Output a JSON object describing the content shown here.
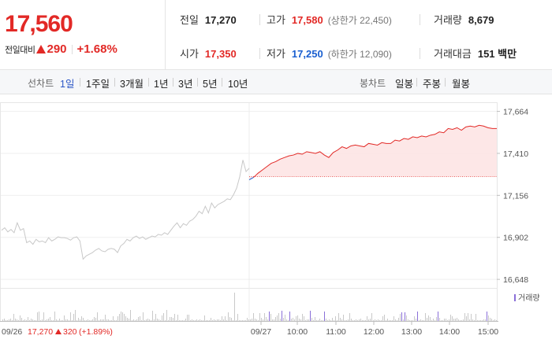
{
  "header": {
    "price": "17,560",
    "change_label": "전일대비",
    "change_value": "290",
    "change_pct": "+1.68%"
  },
  "stats": {
    "prev_close_label": "전일",
    "prev_close": "17,270",
    "open_label": "시가",
    "open": "17,350",
    "high_label": "고가",
    "high": "17,580",
    "upper_limit": "(상한가 22,450)",
    "low_label": "저가",
    "low": "17,250",
    "lower_limit": "(하한가 12,090)",
    "volume_label": "거래량",
    "volume": "8,679",
    "amount_label": "거래대금",
    "amount": "151 백만"
  },
  "toolbar": {
    "line_label": "선차트",
    "line_options": [
      "1일",
      "1주일",
      "3개월",
      "1년",
      "3년",
      "5년",
      "10년"
    ],
    "candle_label": "봉차트",
    "candle_options": [
      "일봉",
      "주봉",
      "월봉"
    ]
  },
  "legend": {
    "volume": "거래량"
  },
  "footer": {
    "prev_date": "09/26",
    "prev_price": "17,270",
    "prev_change": "320",
    "prev_pct": "(+1.89%)"
  },
  "colors": {
    "up": "#e22926",
    "down": "#1a5fd0",
    "prev_line": "#c8c8c8",
    "fill": "#fde3e3",
    "volume": "#c9c9c9",
    "volume_today": "#8a6fd8"
  },
  "chart_data": {
    "type": "line",
    "y_ticks": [
      "17,664",
      "17,410",
      "17,156",
      "16,902",
      "16,648"
    ],
    "y_tick_values": [
      17664,
      17410,
      17156,
      16902,
      16648
    ],
    "ylim": [
      16620,
      17700
    ],
    "baseline": 17270,
    "x_ticks": [
      "09/27",
      "10:00",
      "11:00",
      "12:00",
      "13:00",
      "14:00",
      "15:00"
    ],
    "previous_day_series": [
      16945,
      16960,
      16935,
      16950,
      16930,
      16990,
      16945,
      16955,
      16870,
      16880,
      16860,
      16890,
      16875,
      16880,
      16870,
      16900,
      16880,
      16890,
      16905,
      16900,
      16900,
      16895,
      16885,
      16900,
      16905,
      16880,
      16770,
      16790,
      16800,
      16810,
      16825,
      16835,
      16820,
      16815,
      16830,
      16835,
      16830,
      16810,
      16850,
      16865,
      16890,
      16880,
      16900,
      16910,
      16895,
      16905,
      16890,
      16900,
      16910,
      16905,
      16920,
      16915,
      16930,
      16920,
      16945,
      16970,
      16990,
      16960,
      16985,
      16975,
      17000,
      17010,
      17030,
      17060,
      17045,
      17090,
      17050,
      17110,
      17080,
      17100,
      17110,
      17120,
      17135,
      17130,
      17160,
      17200,
      17270,
      17370,
      17300,
      17320
    ],
    "today_series": [
      17250,
      17265,
      17290,
      17310,
      17330,
      17350,
      17360,
      17375,
      17385,
      17395,
      17400,
      17410,
      17405,
      17420,
      17415,
      17410,
      17420,
      17400,
      17385,
      17415,
      17430,
      17450,
      17440,
      17455,
      17460,
      17455,
      17450,
      17470,
      17465,
      17460,
      17475,
      17470,
      17470,
      17490,
      17485,
      17500,
      17495,
      17510,
      17505,
      17515,
      17510,
      17520,
      17525,
      17540,
      17535,
      17560,
      17555,
      17565,
      17550,
      17570,
      17575,
      17570,
      17580,
      17575,
      17565,
      17560,
      17560
    ]
  }
}
